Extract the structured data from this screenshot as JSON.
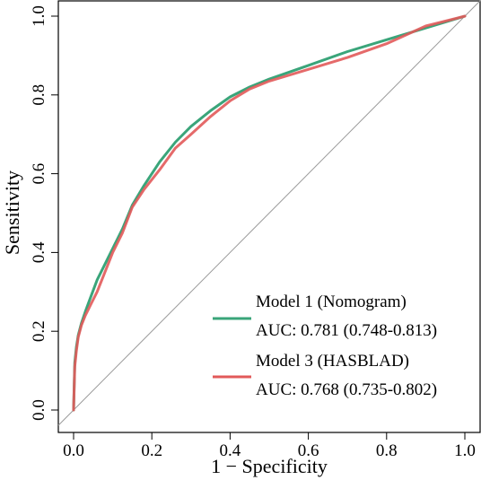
{
  "chart_data": {
    "type": "line",
    "xlabel": "1 − Specificity",
    "ylabel": "Sensitivity",
    "xlim": [
      0,
      1
    ],
    "ylim": [
      0,
      1
    ],
    "x_ticks": [
      "0.0",
      "0.2",
      "0.4",
      "0.6",
      "0.8",
      "1.0"
    ],
    "y_ticks": [
      "0.0",
      "0.2",
      "0.4",
      "0.6",
      "0.8",
      "1.0"
    ],
    "grid": false,
    "legend_position": "bottom-right",
    "reference_line": {
      "x": [
        0,
        1
      ],
      "y": [
        0,
        1
      ],
      "color": "#999999"
    },
    "series": [
      {
        "name": "Model 1 (Nomogram)",
        "auc_label": "AUC: 0.781 (0.748-0.813)",
        "color": "#3aa57a",
        "x": [
          0,
          0.003,
          0.007,
          0.012,
          0.02,
          0.03,
          0.045,
          0.06,
          0.08,
          0.1,
          0.125,
          0.15,
          0.18,
          0.22,
          0.26,
          0.3,
          0.35,
          0.4,
          0.45,
          0.5,
          0.6,
          0.7,
          0.8,
          0.9,
          1.0
        ],
        "y": [
          0,
          0.12,
          0.16,
          0.19,
          0.22,
          0.25,
          0.29,
          0.33,
          0.37,
          0.41,
          0.46,
          0.52,
          0.57,
          0.63,
          0.68,
          0.72,
          0.76,
          0.795,
          0.82,
          0.84,
          0.875,
          0.91,
          0.94,
          0.97,
          1.0
        ]
      },
      {
        "name": "Model 3 (HASBLAD)",
        "auc_label": "AUC: 0.768 (0.735-0.802)",
        "color": "#e25a5a",
        "x": [
          0,
          0.003,
          0.007,
          0.012,
          0.02,
          0.03,
          0.045,
          0.06,
          0.08,
          0.1,
          0.125,
          0.15,
          0.18,
          0.22,
          0.26,
          0.3,
          0.35,
          0.4,
          0.45,
          0.5,
          0.6,
          0.7,
          0.8,
          0.9,
          1.0
        ],
        "y": [
          0,
          0.11,
          0.15,
          0.185,
          0.215,
          0.24,
          0.27,
          0.3,
          0.35,
          0.4,
          0.45,
          0.515,
          0.56,
          0.61,
          0.665,
          0.7,
          0.745,
          0.785,
          0.815,
          0.835,
          0.865,
          0.895,
          0.93,
          0.975,
          1.0
        ]
      }
    ]
  }
}
